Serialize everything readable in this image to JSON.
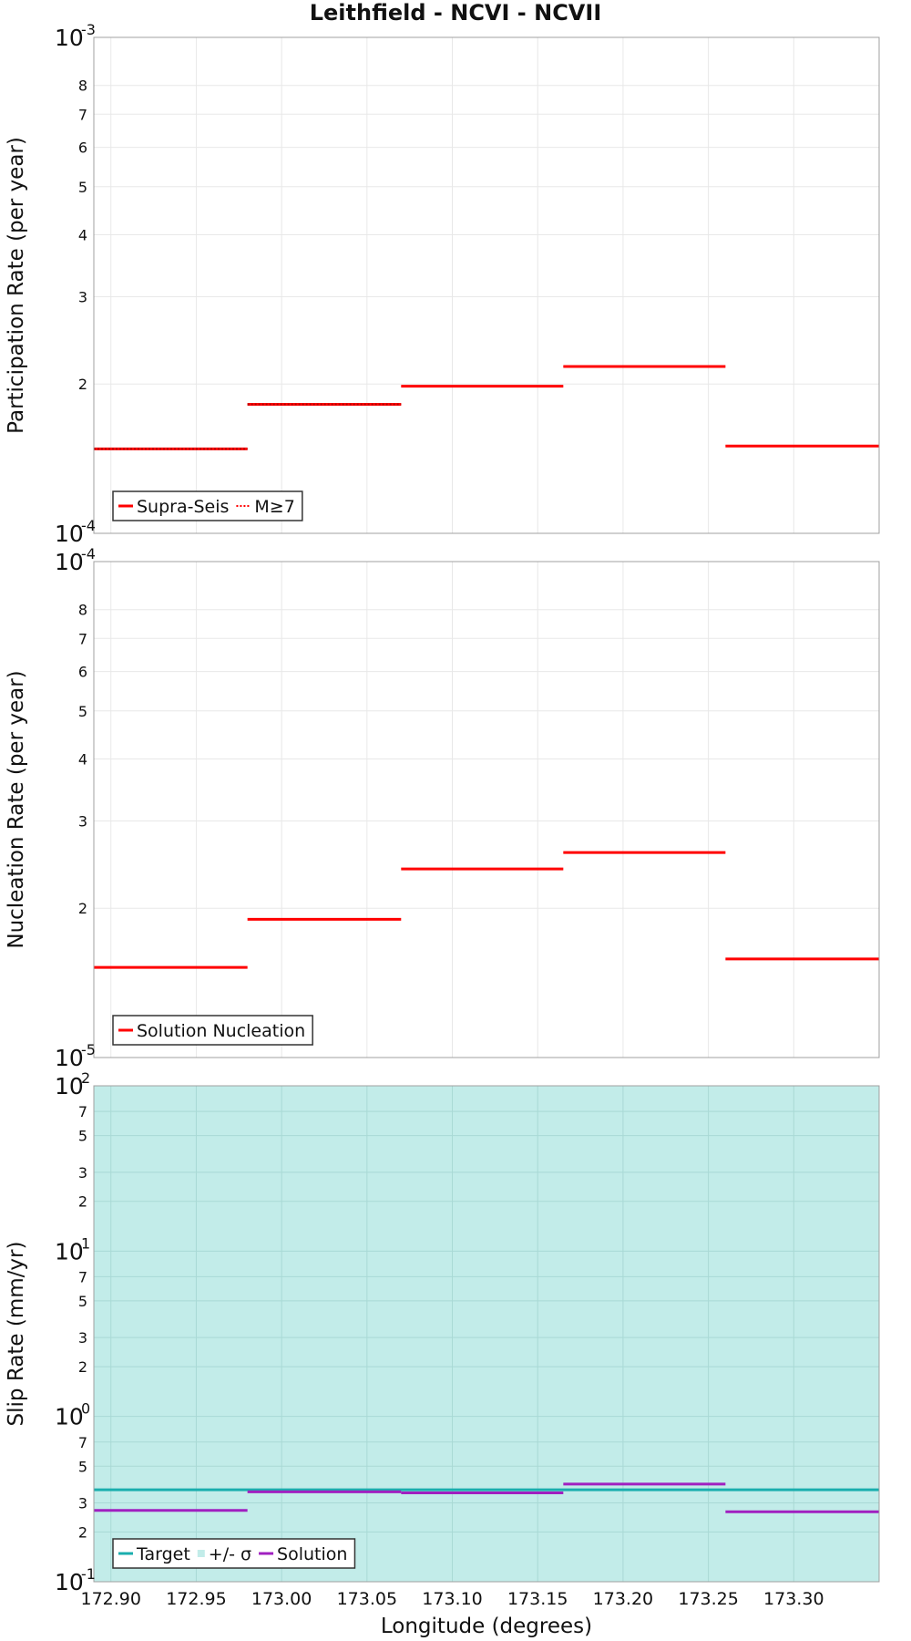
{
  "title": "Leithfield - NCVI - NCVII",
  "colors": {
    "red": "#ff0000",
    "teal": "#1aaeae",
    "band": "#c2ece9",
    "purple": "#a020c0",
    "grid": "#e8e8e8"
  },
  "chart_data": [
    {
      "type": "line",
      "ylabel": "Participation Rate (per year)",
      "yscale": "log",
      "ylim": [
        0.0001,
        0.001
      ],
      "xlim": [
        172.89,
        173.35
      ],
      "y_major_ticks": [
        {
          "v": 0.001,
          "base": "10",
          "exp": "-3"
        },
        {
          "v": 0.0001,
          "base": "10",
          "exp": "-4"
        }
      ],
      "y_minor_ticks": [
        {
          "v": 0.0002,
          "label": "2"
        },
        {
          "v": 0.0003,
          "label": "3"
        },
        {
          "v": 0.0004,
          "label": "4"
        },
        {
          "v": 0.0005,
          "label": "5"
        },
        {
          "v": 0.0006,
          "label": "6"
        },
        {
          "v": 0.0007,
          "label": "7"
        },
        {
          "v": 0.0008,
          "label": "8"
        }
      ],
      "legend": [
        {
          "label": "Supra-Seis",
          "style": "solid",
          "color": "#ff0000"
        },
        {
          "label": "M≥7",
          "style": "dotted",
          "color": "#ff0000"
        }
      ],
      "series": [
        {
          "name": "Supra-Seis",
          "color": "#ff0000",
          "style": "solid",
          "segments": [
            {
              "x0": 172.89,
              "x1": 172.98,
              "y": 0.000148
            },
            {
              "x0": 172.98,
              "x1": 173.07,
              "y": 0.000182
            },
            {
              "x0": 173.07,
              "x1": 173.165,
              "y": 0.000198
            },
            {
              "x0": 173.165,
              "x1": 173.26,
              "y": 0.000217
            },
            {
              "x0": 173.26,
              "x1": 173.35,
              "y": 0.00015
            }
          ]
        },
        {
          "name": "M≥7",
          "color": "#ff0000",
          "style": "dotted",
          "segments": [
            {
              "x0": 172.89,
              "x1": 172.98,
              "y": 0.000148
            },
            {
              "x0": 172.98,
              "x1": 173.07,
              "y": 0.000182
            }
          ]
        }
      ]
    },
    {
      "type": "line",
      "ylabel": "Nucleation Rate (per year)",
      "yscale": "log",
      "ylim": [
        1e-05,
        0.0001
      ],
      "xlim": [
        172.89,
        173.35
      ],
      "y_major_ticks": [
        {
          "v": 0.0001,
          "base": "10",
          "exp": "-4"
        },
        {
          "v": 1e-05,
          "base": "10",
          "exp": "-5"
        }
      ],
      "y_minor_ticks": [
        {
          "v": 2e-05,
          "label": "2"
        },
        {
          "v": 3e-05,
          "label": "3"
        },
        {
          "v": 4e-05,
          "label": "4"
        },
        {
          "v": 5e-05,
          "label": "5"
        },
        {
          "v": 6e-05,
          "label": "6"
        },
        {
          "v": 7e-05,
          "label": "7"
        },
        {
          "v": 8e-05,
          "label": "8"
        }
      ],
      "legend": [
        {
          "label": "Solution Nucleation",
          "style": "solid",
          "color": "#ff0000"
        }
      ],
      "series": [
        {
          "name": "Solution Nucleation",
          "color": "#ff0000",
          "style": "solid",
          "segments": [
            {
              "x0": 172.89,
              "x1": 172.98,
              "y": 1.52e-05
            },
            {
              "x0": 172.98,
              "x1": 173.07,
              "y": 1.9e-05
            },
            {
              "x0": 173.07,
              "x1": 173.165,
              "y": 2.4e-05
            },
            {
              "x0": 173.165,
              "x1": 173.26,
              "y": 2.59e-05
            },
            {
              "x0": 173.26,
              "x1": 173.35,
              "y": 1.58e-05
            }
          ]
        }
      ]
    },
    {
      "type": "line",
      "ylabel": "Slip Rate (mm/yr)",
      "xlabel": "Longitude (degrees)",
      "yscale": "log",
      "ylim": [
        0.1,
        100
      ],
      "xlim": [
        172.89,
        173.35
      ],
      "x_ticks": [
        172.9,
        172.95,
        173.0,
        173.05,
        173.1,
        173.15,
        173.2,
        173.25,
        173.3
      ],
      "x_tick_labels": [
        "172.90",
        "172.95",
        "173.00",
        "173.05",
        "173.10",
        "173.15",
        "173.20",
        "173.25",
        "173.30"
      ],
      "y_major_ticks": [
        {
          "v": 100,
          "base": "10",
          "exp": "2"
        },
        {
          "v": 10,
          "base": "10",
          "exp": "1"
        },
        {
          "v": 1,
          "base": "10",
          "exp": "0"
        },
        {
          "v": 0.1,
          "base": "10",
          "exp": "-1"
        }
      ],
      "y_minor_ticks": [
        {
          "v": 70,
          "label": "7"
        },
        {
          "v": 50,
          "label": "5"
        },
        {
          "v": 30,
          "label": "3"
        },
        {
          "v": 20,
          "label": "2"
        },
        {
          "v": 7,
          "label": "7"
        },
        {
          "v": 5,
          "label": "5"
        },
        {
          "v": 3,
          "label": "3"
        },
        {
          "v": 2,
          "label": "2"
        },
        {
          "v": 0.7,
          "label": "7"
        },
        {
          "v": 0.5,
          "label": "5"
        },
        {
          "v": 0.3,
          "label": "3"
        },
        {
          "v": 0.2,
          "label": "2"
        }
      ],
      "band": {
        "name": "+/- σ",
        "y_low": 0.1,
        "y_high": 100
      },
      "legend": [
        {
          "label": "Target",
          "style": "solid",
          "color": "#1aaeae"
        },
        {
          "label": "+/- σ",
          "style": "band",
          "color": "#c2ece9"
        },
        {
          "label": "Solution",
          "style": "solid",
          "color": "#a020c0"
        }
      ],
      "series": [
        {
          "name": "Target",
          "color": "#1aaeae",
          "style": "solid",
          "segments": [
            {
              "x0": 172.89,
              "x1": 173.35,
              "y": 0.36
            }
          ]
        },
        {
          "name": "Solution",
          "color": "#a020c0",
          "style": "solid",
          "segments": [
            {
              "x0": 172.89,
              "x1": 172.98,
              "y": 0.27
            },
            {
              "x0": 172.98,
              "x1": 173.07,
              "y": 0.35
            },
            {
              "x0": 173.07,
              "x1": 173.165,
              "y": 0.345
            },
            {
              "x0": 173.165,
              "x1": 173.26,
              "y": 0.39
            },
            {
              "x0": 173.26,
              "x1": 173.35,
              "y": 0.265
            }
          ]
        }
      ]
    }
  ]
}
